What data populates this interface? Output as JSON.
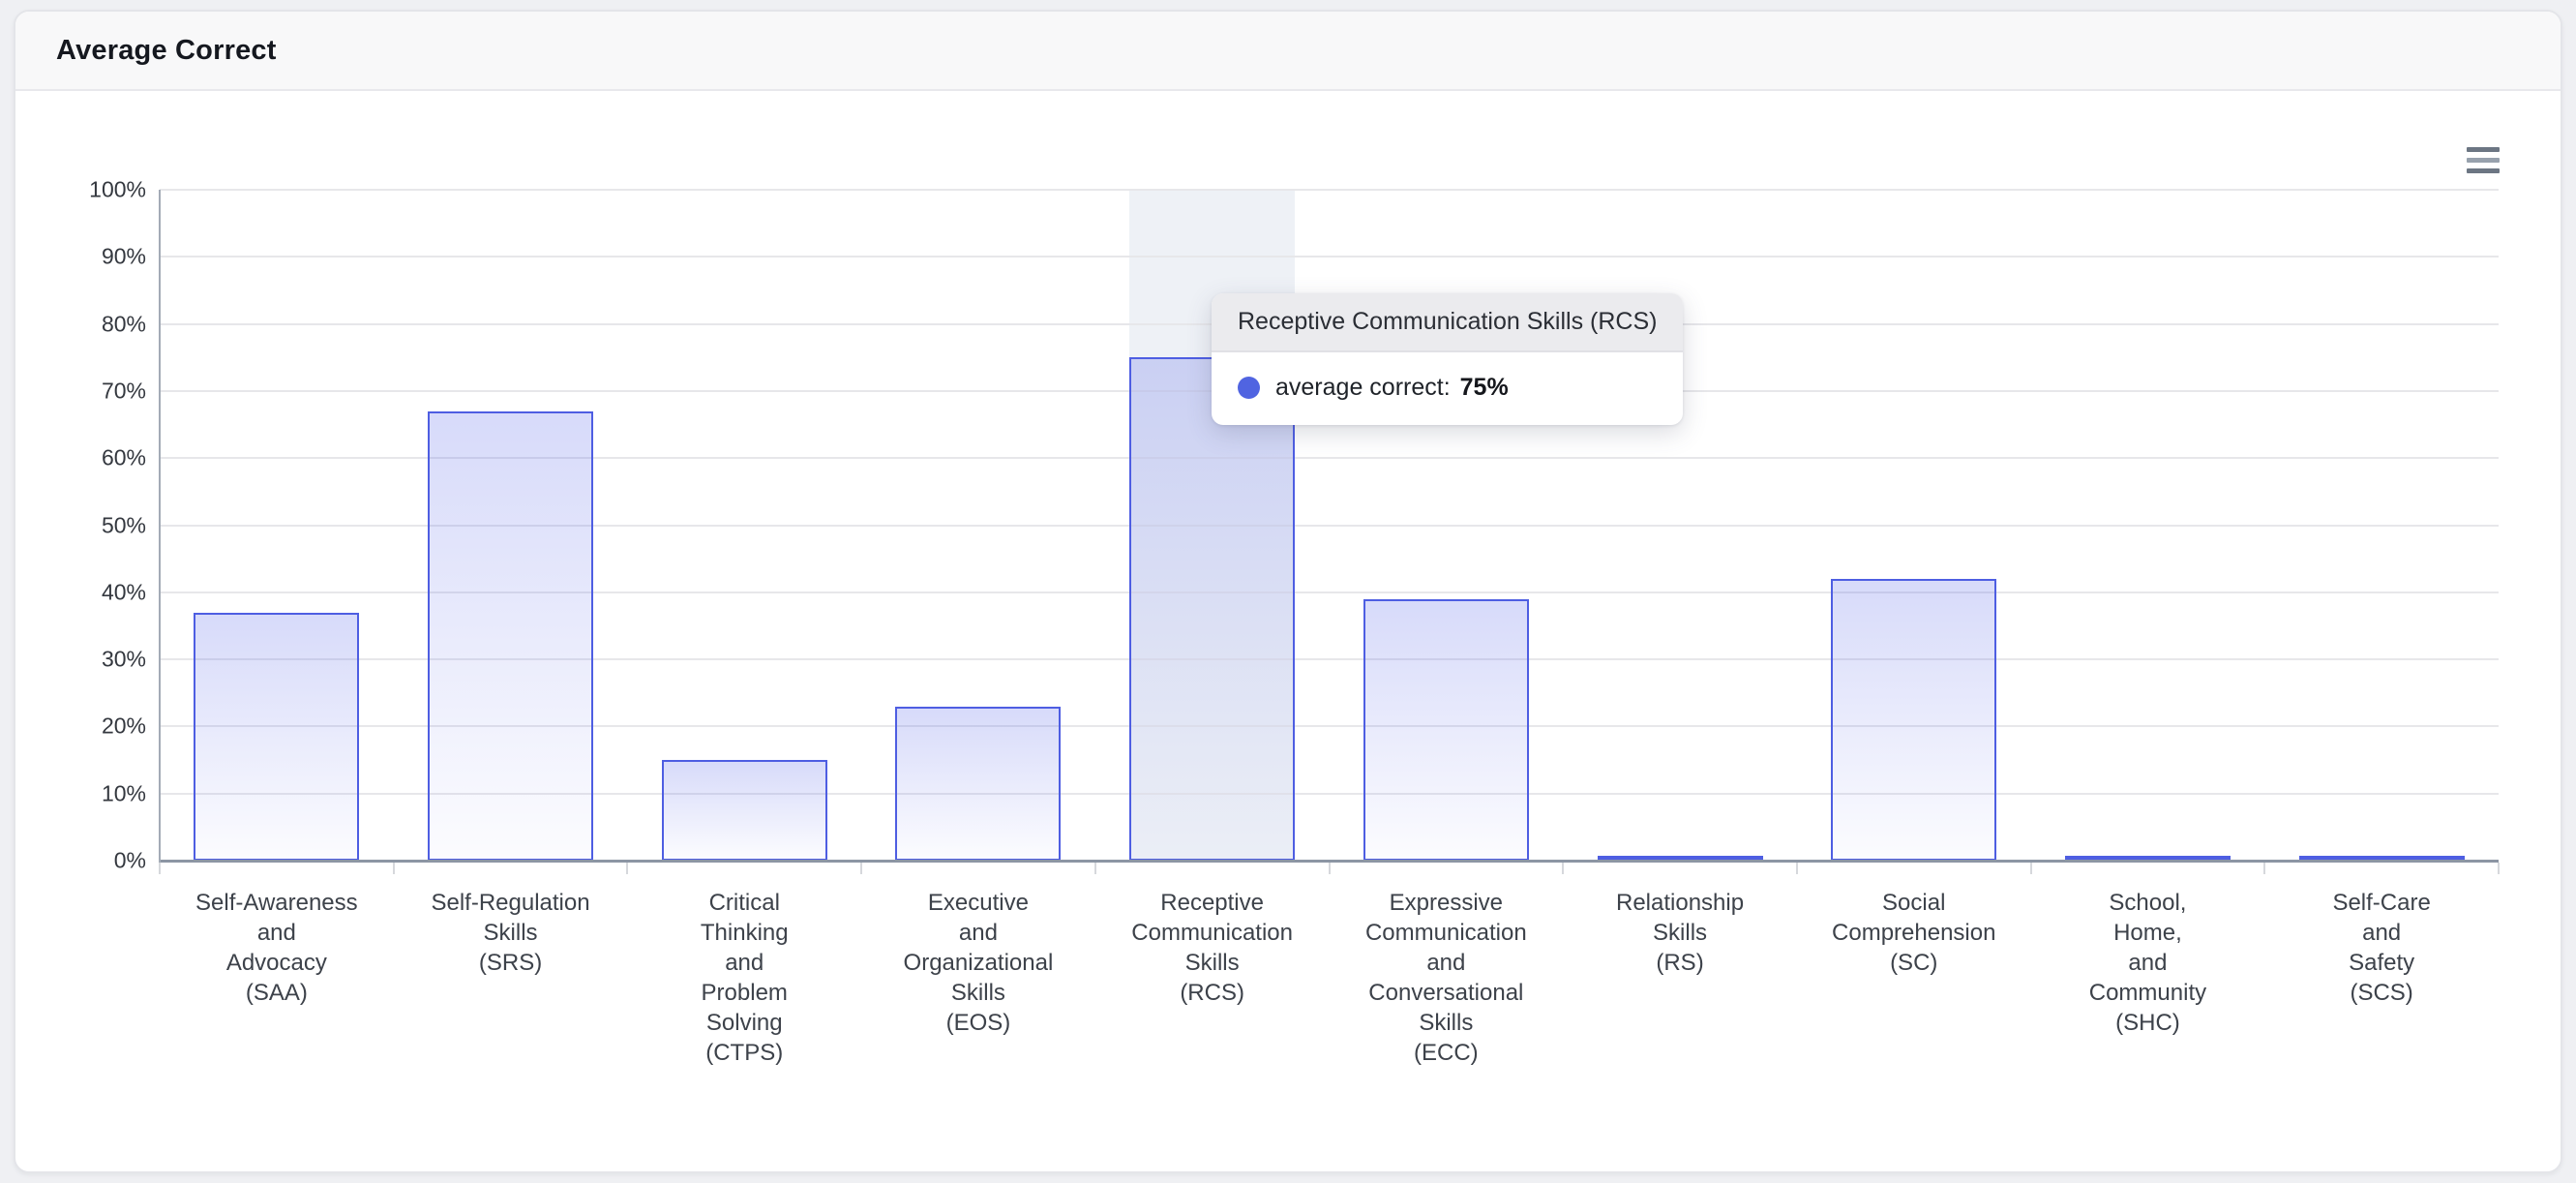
{
  "header": {
    "title": "Average Correct"
  },
  "export_menu": {
    "icon": "hamburger-menu-icon"
  },
  "tooltip": {
    "title": "Receptive Communication Skills (RCS)",
    "series_label": "average correct:",
    "value": "75%"
  },
  "colors": {
    "accent": "#5064e1",
    "bar_border": "#4e5ee2",
    "bar_fill_top": "rgba(88,102,232,0.24)",
    "bar_fill_bottom": "rgba(88,102,232,0.02)",
    "hover_band": "rgba(203,212,227,0.32)",
    "gridline": "#e7e7ea",
    "x_axis_line": "#8c96a4",
    "y_axis_line": "#a3abb6",
    "axis_tick": "#d6d8dc",
    "tooltip_dot": "#5064e1"
  },
  "chart_data": {
    "type": "bar",
    "title": "Average Correct",
    "series": [
      {
        "name": "average correct",
        "values": [
          37,
          67,
          15,
          23,
          75,
          39,
          0,
          42,
          0,
          0
        ]
      }
    ],
    "categories": [
      "Self-Awareness and Advocacy (SAA)",
      "Self-Regulation Skills (SRS)",
      "Critical Thinking and Problem Solving (CTPS)",
      "Executive and Organizational Skills (EOS)",
      "Receptive Communication Skills (RCS)",
      "Expressive Communication and Conversational Skills (ECC)",
      "Relationship Skills (RS)",
      "Social Comprehension (SC)",
      "School, Home, and Community (SHC)",
      "Self-Care and Safety (SCS)"
    ],
    "category_codes": [
      "SAA",
      "SRS",
      "CTPS",
      "EOS",
      "RCS",
      "ECC",
      "RS",
      "SC",
      "SHC",
      "SCS"
    ],
    "category_label_lines": [
      [
        "Self-Awareness",
        "and",
        "Advocacy",
        "(SAA)"
      ],
      [
        "Self-Regulation",
        "Skills",
        "(SRS)"
      ],
      [
        "Critical",
        "Thinking",
        "and",
        "Problem",
        "Solving",
        "(CTPS)"
      ],
      [
        "Executive",
        "and",
        "Organizational",
        "Skills",
        "(EOS)"
      ],
      [
        "Receptive",
        "Communication",
        "Skills",
        "(RCS)"
      ],
      [
        "Expressive",
        "Communication",
        "and",
        "Conversational",
        "Skills",
        "(ECC)"
      ],
      [
        "Relationship",
        "Skills",
        "(RS)"
      ],
      [
        "Social",
        "Comprehension",
        "(SC)"
      ],
      [
        "School,",
        "Home,",
        "and",
        "Community",
        "(SHC)"
      ],
      [
        "Self-Care",
        "and",
        "Safety",
        "(SCS)"
      ]
    ],
    "y_ticks": [
      "0%",
      "10%",
      "20%",
      "30%",
      "40%",
      "50%",
      "60%",
      "70%",
      "80%",
      "90%",
      "100%"
    ],
    "ylim": [
      0,
      100
    ],
    "unit": "%",
    "grid": true,
    "legend": "none",
    "hovered_category_index": 4
  }
}
